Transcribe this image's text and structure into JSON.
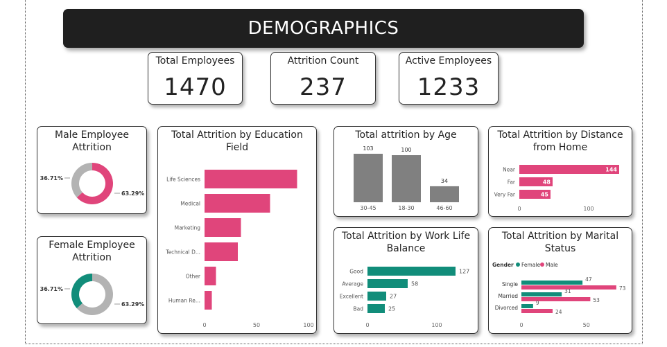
{
  "header": {
    "title": "DEMOGRAPHICS"
  },
  "kpis": {
    "total_label": "Total Employees",
    "total_value": "1470",
    "attrition_label": "Attrition Count",
    "attrition_value": "237",
    "active_label": "Active Employees",
    "active_value": "1233"
  },
  "colors": {
    "pink": "#e0457b",
    "teal": "#118d7a",
    "gray": "#808080",
    "ring_gray": "#b3b3b3"
  },
  "male_card": {
    "title_1": "Male Employee",
    "title_2": "Attrition"
  },
  "female_card": {
    "title_1": "Female Employee",
    "title_2": "Attrition"
  },
  "education_card": {
    "title_1": "Total Attrition by Education",
    "title_2": "Field"
  },
  "age_card": {
    "title_1": "Total attrition by Age"
  },
  "distance_card": {
    "title_1": "Total Attrition by Distance",
    "title_2": "from Home"
  },
  "wlb_card": {
    "title_1": "Total Attrition by Work Life",
    "title_2": "Balance"
  },
  "marital_card": {
    "title_1": "Total Attrition by Marital",
    "title_2": "Status"
  },
  "chart_data": [
    {
      "id": "male",
      "type": "pie",
      "slices": [
        {
          "label": "63.29%",
          "value": 63.29,
          "color": "#e0457b"
        },
        {
          "label": "36.71%",
          "value": 36.71,
          "color": "#b3b3b3"
        }
      ]
    },
    {
      "id": "female",
      "type": "pie",
      "slices": [
        {
          "label": "63.29%",
          "value": 63.29,
          "color": "#b3b3b3"
        },
        {
          "label": "36.71%",
          "value": 36.71,
          "color": "#118d7a"
        }
      ]
    },
    {
      "id": "education",
      "type": "bar",
      "orientation": "horizontal",
      "categories": [
        "Life Sciences",
        "Medical",
        "Marketing",
        "Technical D...",
        "Other",
        "Human Re..."
      ],
      "values": [
        89,
        63,
        35,
        32,
        11,
        7
      ],
      "xlim": [
        0,
        100
      ],
      "xticks": [
        "0",
        "50",
        "100"
      ],
      "color": "#e0457b"
    },
    {
      "id": "age",
      "type": "bar",
      "orientation": "vertical",
      "categories": [
        "30-45",
        "18-30",
        "46-60"
      ],
      "values": [
        103,
        100,
        34
      ],
      "labels": [
        "103",
        "100",
        "34"
      ],
      "color": "#808080"
    },
    {
      "id": "distance",
      "type": "bar",
      "orientation": "horizontal",
      "categories": [
        "Near",
        "Far",
        "Very Far"
      ],
      "values": [
        144,
        48,
        45
      ],
      "labels": [
        "144",
        "48",
        "45"
      ],
      "xlim": [
        0,
        150
      ],
      "xticks": [
        "0",
        "100"
      ],
      "color": "#e0457b"
    },
    {
      "id": "wlb",
      "type": "bar",
      "orientation": "horizontal",
      "categories": [
        "Good",
        "Average",
        "Excellent",
        "Bad"
      ],
      "values": [
        127,
        58,
        27,
        25
      ],
      "labels": [
        "127",
        "58",
        "27",
        "25"
      ],
      "xlim": [
        0,
        130
      ],
      "xticks": [
        "0",
        "100"
      ],
      "color": "#118d7a"
    },
    {
      "id": "marital",
      "type": "bar",
      "orientation": "horizontal",
      "legend_title": "Gender",
      "categories": [
        "Single",
        "Married",
        "Divorced"
      ],
      "series": [
        {
          "name": "Female",
          "values": [
            47,
            31,
            9
          ],
          "labels": [
            "47",
            "31",
            "9"
          ],
          "color": "#118d7a"
        },
        {
          "name": "Male",
          "values": [
            73,
            53,
            24
          ],
          "labels": [
            "73",
            "53",
            "24"
          ],
          "color": "#e0457b"
        }
      ],
      "xlim": [
        0,
        80
      ],
      "xticks": [
        "0",
        "50"
      ]
    }
  ]
}
